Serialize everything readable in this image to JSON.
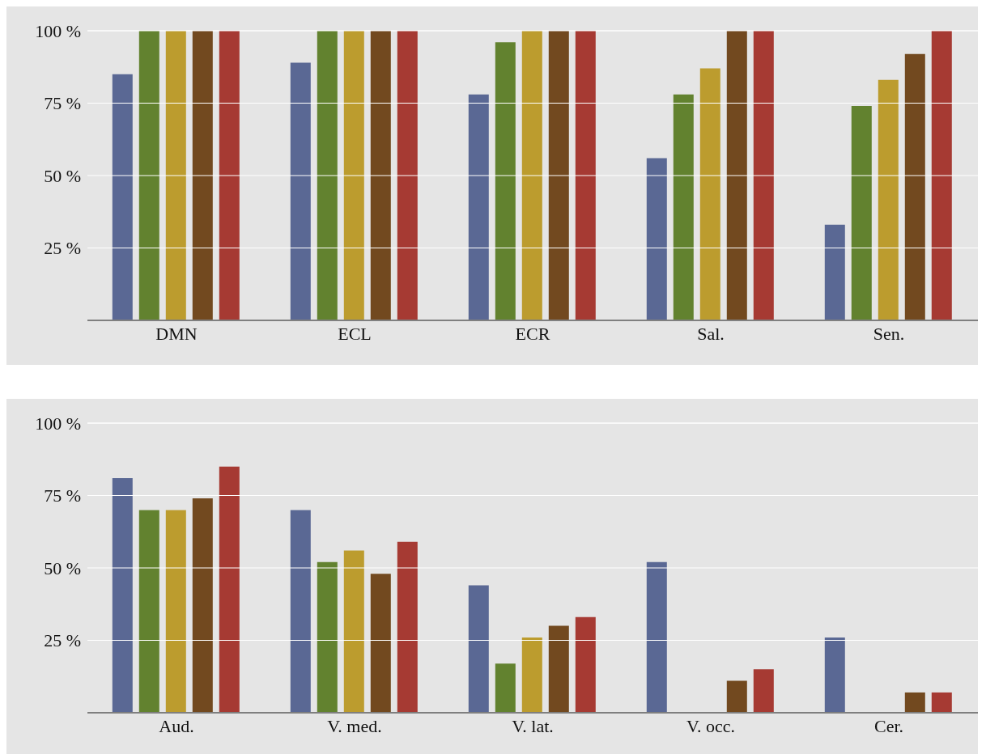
{
  "chart_data": [
    {
      "type": "bar",
      "categories": [
        "DMN",
        "ECL",
        "ECR",
        "Sal.",
        "Sen."
      ],
      "ylim": [
        0,
        100
      ],
      "yticks": [
        {
          "value": 25,
          "label": "25 %"
        },
        {
          "value": 50,
          "label": "50 %"
        },
        {
          "value": 75,
          "label": "75 %"
        },
        {
          "value": 100,
          "label": "100 %"
        }
      ],
      "grid": "y",
      "series": [
        {
          "color": "#5a6894",
          "values": [
            85,
            89,
            78,
            56,
            33
          ]
        },
        {
          "color": "#62822f",
          "values": [
            100,
            100,
            96,
            78,
            74
          ]
        },
        {
          "color": "#bc9c2e",
          "values": [
            100,
            100,
            100,
            87,
            83
          ]
        },
        {
          "color": "#72491f",
          "values": [
            100,
            100,
            100,
            100,
            92
          ]
        },
        {
          "color": "#a63a33",
          "values": [
            100,
            100,
            100,
            100,
            100
          ]
        }
      ]
    },
    {
      "type": "bar",
      "categories": [
        "Aud.",
        "V. med.",
        "V. lat.",
        "V. occ.",
        "Cer."
      ],
      "ylim": [
        0,
        100
      ],
      "yticks": [
        {
          "value": 25,
          "label": "25 %"
        },
        {
          "value": 50,
          "label": "50 %"
        },
        {
          "value": 75,
          "label": "75 %"
        },
        {
          "value": 100,
          "label": "100 %"
        }
      ],
      "grid": "y",
      "series": [
        {
          "color": "#5a6894",
          "values": [
            81,
            70,
            44,
            52,
            26
          ]
        },
        {
          "color": "#62822f",
          "values": [
            70,
            52,
            17,
            0,
            0
          ]
        },
        {
          "color": "#bc9c2e",
          "values": [
            70,
            56,
            26,
            0,
            0
          ]
        },
        {
          "color": "#72491f",
          "values": [
            74,
            48,
            30,
            11,
            7
          ]
        },
        {
          "color": "#a63a33",
          "values": [
            85,
            59,
            33,
            15,
            7
          ]
        }
      ]
    }
  ]
}
